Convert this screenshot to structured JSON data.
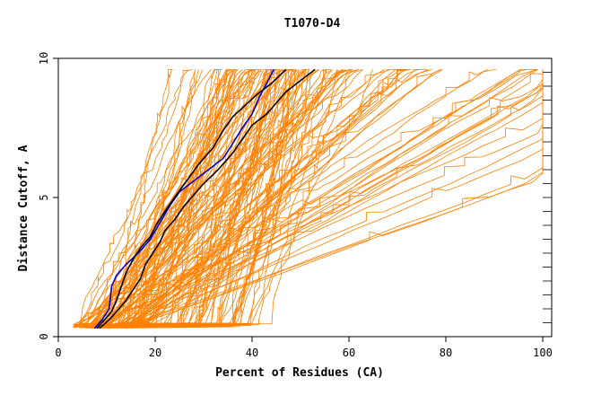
{
  "chart_data": {
    "type": "line",
    "title": "T1070-D4",
    "xlabel": "Percent of Residues (CA)",
    "ylabel": "Distance Cutoff, A",
    "xlim": [
      0,
      100
    ],
    "ylim": [
      0,
      10
    ],
    "x_ticks": [
      0,
      20,
      40,
      60,
      80,
      100
    ],
    "y_ticks": [
      0,
      5,
      10
    ],
    "grid": false,
    "colors": {
      "orange_series": "#ff8000",
      "blue_series": "#0000cc",
      "black_series": "#000000"
    },
    "highlighted_series": [
      {
        "color": "blue",
        "points": [
          [
            7.5,
            0.3
          ],
          [
            9,
            0.6
          ],
          [
            10.5,
            1.0
          ],
          [
            11,
            1.8
          ],
          [
            12,
            2.2
          ],
          [
            14,
            2.6
          ],
          [
            16.5,
            3.0
          ],
          [
            19,
            3.5
          ],
          [
            21,
            4.1
          ],
          [
            23,
            4.7
          ],
          [
            25,
            5.2
          ],
          [
            28,
            5.6
          ],
          [
            31,
            6.0
          ],
          [
            34,
            6.4
          ],
          [
            35.5,
            6.8
          ],
          [
            38,
            7.5
          ],
          [
            40,
            8.0
          ],
          [
            41.5,
            8.6
          ],
          [
            43,
            9.1
          ],
          [
            44.5,
            9.6
          ]
        ]
      },
      {
        "color": "black",
        "points": [
          [
            8,
            0.3
          ],
          [
            9.5,
            0.6
          ],
          [
            11,
            0.9
          ],
          [
            12,
            1.3
          ],
          [
            13,
            1.8
          ],
          [
            14,
            2.3
          ],
          [
            15.5,
            2.8
          ],
          [
            17,
            3.2
          ],
          [
            19,
            3.6
          ],
          [
            20.5,
            4.1
          ],
          [
            22,
            4.5
          ],
          [
            24,
            5.0
          ],
          [
            26.5,
            5.6
          ],
          [
            29,
            6.2
          ],
          [
            32,
            6.8
          ],
          [
            34,
            7.4
          ],
          [
            36,
            7.9
          ],
          [
            38.5,
            8.3
          ],
          [
            41,
            8.7
          ],
          [
            44,
            9.1
          ],
          [
            47,
            9.6
          ]
        ]
      },
      {
        "color": "black",
        "points": [
          [
            8.5,
            0.3
          ],
          [
            10.5,
            0.6
          ],
          [
            12,
            0.9
          ],
          [
            14,
            1.3
          ],
          [
            15.5,
            1.7
          ],
          [
            17,
            2.1
          ],
          [
            18,
            2.6
          ],
          [
            19.5,
            3.0
          ],
          [
            21,
            3.4
          ],
          [
            22,
            3.8
          ],
          [
            24,
            4.2
          ],
          [
            26,
            4.7
          ],
          [
            28,
            5.1
          ],
          [
            30,
            5.5
          ],
          [
            33,
            6.0
          ],
          [
            36,
            6.6
          ],
          [
            38,
            7.1
          ],
          [
            40,
            7.6
          ],
          [
            43,
            8.0
          ],
          [
            45,
            8.4
          ],
          [
            47,
            8.8
          ],
          [
            50,
            9.2
          ],
          [
            53,
            9.6
          ]
        ]
      }
    ],
    "background_series_description_count": 150
  }
}
